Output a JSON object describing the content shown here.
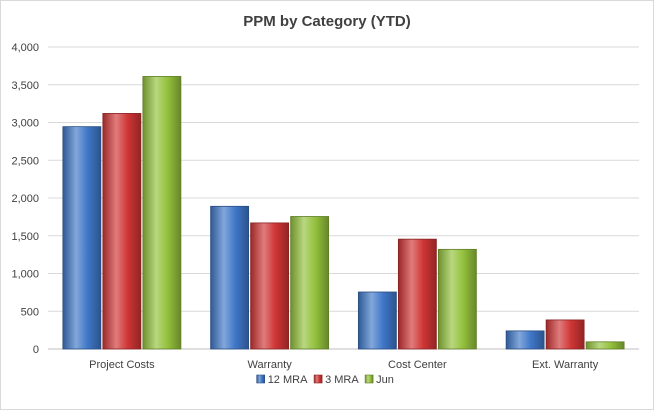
{
  "chart_data": {
    "type": "bar",
    "title": "PPM by Category (YTD)",
    "xlabel": "",
    "ylabel": "",
    "categories": [
      "Project Costs",
      "Warranty",
      "Cost Center",
      "Ext. Warranty"
    ],
    "series": [
      {
        "name": "12 MRA",
        "color": "#3f77c8",
        "values": [
          2945,
          1890,
          755,
          240
        ]
      },
      {
        "name": "3 MRA",
        "color": "#d03535",
        "values": [
          3120,
          1670,
          1455,
          385
        ]
      },
      {
        "name": "Jun",
        "color": "#93c13c",
        "values": [
          3610,
          1755,
          1320,
          95
        ]
      }
    ],
    "ylim": [
      0,
      4000
    ],
    "yticks": [
      0,
      500,
      1000,
      1500,
      2000,
      2500,
      3000,
      3500,
      4000
    ],
    "ytick_labels": [
      "0",
      "500",
      "1,000",
      "1,500",
      "2,000",
      "2,500",
      "3,000",
      "3,500",
      "4,000"
    ],
    "grid": true,
    "legend_position": "bottom"
  }
}
